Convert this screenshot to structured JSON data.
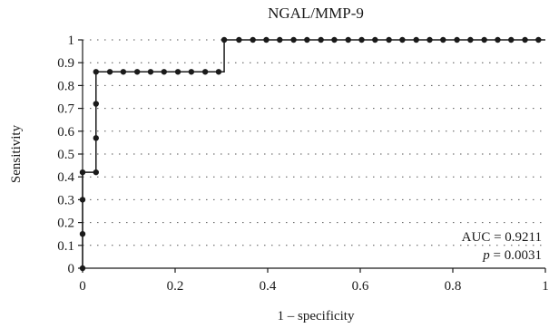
{
  "chart_data": {
    "type": "line",
    "title": "NGAL/MMP-9",
    "xlabel": "1 – specificity",
    "ylabel": "Sensitivity",
    "xlim": [
      0,
      1
    ],
    "ylim": [
      0,
      1
    ],
    "x_ticks": [
      "0",
      "0.2",
      "0.4",
      "0.6",
      "0.8",
      "1"
    ],
    "x_tick_values": [
      0,
      0.2,
      0.4,
      0.6,
      0.8,
      1
    ],
    "y_ticks": [
      "0",
      "0.1",
      "0.2",
      "0.3",
      "0.4",
      "0.5",
      "0.6",
      "0.7",
      "0.8",
      "0.9",
      "1"
    ],
    "y_tick_values": [
      0,
      0.1,
      0.2,
      0.3,
      0.4,
      0.5,
      0.6,
      0.7,
      0.8,
      0.9,
      1
    ],
    "grid": "horizontal dotted",
    "annotation": {
      "auc_label": "AUC = 0.9211",
      "p_symbol": "p",
      "p_value": " = 0.0031"
    },
    "series": [
      {
        "step": true,
        "x": [
          0,
          0,
          0,
          0,
          0.029,
          0.029,
          0.029,
          0.029,
          0.059,
          0.088,
          0.118,
          0.147,
          0.176,
          0.206,
          0.235,
          0.265,
          0.294,
          0.306,
          0.338,
          0.368,
          0.397,
          0.426,
          0.456,
          0.485,
          0.515,
          0.544,
          0.574,
          0.603,
          0.632,
          0.662,
          0.691,
          0.721,
          0.75,
          0.779,
          0.809,
          0.838,
          0.868,
          0.897,
          0.926,
          0.956,
          0.985
        ],
        "y": [
          0,
          0.15,
          0.3,
          0.42,
          0.42,
          0.57,
          0.72,
          0.86,
          0.86,
          0.86,
          0.86,
          0.86,
          0.86,
          0.86,
          0.86,
          0.86,
          0.86,
          1,
          1,
          1,
          1,
          1,
          1,
          1,
          1,
          1,
          1,
          1,
          1,
          1,
          1,
          1,
          1,
          1,
          1,
          1,
          1,
          1,
          1,
          1,
          1
        ]
      }
    ]
  }
}
